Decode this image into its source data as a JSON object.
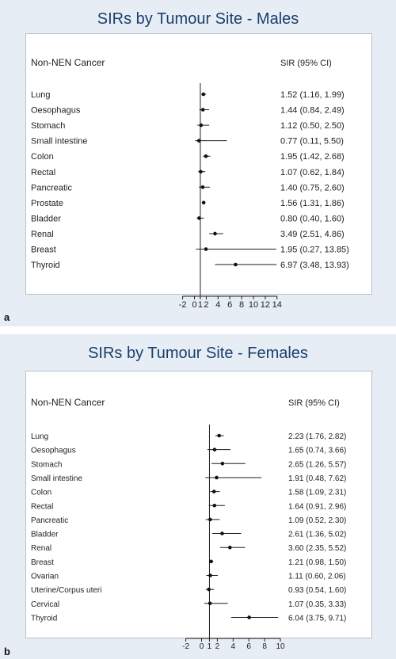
{
  "chart_data": [
    {
      "type": "forest",
      "panel_label": "a",
      "title": "SIRs by Tumour Site - Males",
      "row_header": "Non-NEN Cancer",
      "value_header": "SIR (95% CI)",
      "x_ticks": [
        -2,
        0,
        1,
        2,
        4,
        6,
        8,
        10,
        12,
        14
      ],
      "reference_line": 1,
      "rows": [
        {
          "label": "Lung",
          "sir": 1.52,
          "lo": 1.16,
          "hi": 1.99,
          "text": "1.52 (1.16, 1.99)"
        },
        {
          "label": "Oesophagus",
          "sir": 1.44,
          "lo": 0.84,
          "hi": 2.49,
          "text": "1.44 (0.84, 2.49)"
        },
        {
          "label": "Stomach",
          "sir": 1.12,
          "lo": 0.5,
          "hi": 2.5,
          "text": "1.12 (0.50, 2.50)"
        },
        {
          "label": "Small intestine",
          "sir": 0.77,
          "lo": 0.11,
          "hi": 5.5,
          "text": "0.77 (0.11, 5.50)"
        },
        {
          "label": "Colon",
          "sir": 1.95,
          "lo": 1.42,
          "hi": 2.68,
          "text": "1.95 (1.42, 2.68)"
        },
        {
          "label": "Rectal",
          "sir": 1.07,
          "lo": 0.62,
          "hi": 1.84,
          "text": "1.07 (0.62, 1.84)"
        },
        {
          "label": "Pancreatic",
          "sir": 1.4,
          "lo": 0.75,
          "hi": 2.6,
          "text": "1.40 (0.75, 2.60)"
        },
        {
          "label": "Prostate",
          "sir": 1.56,
          "lo": 1.31,
          "hi": 1.86,
          "text": "1.56 (1.31, 1.86)"
        },
        {
          "label": "Bladder",
          "sir": 0.8,
          "lo": 0.4,
          "hi": 1.6,
          "text": "0.80 (0.40, 1.60)"
        },
        {
          "label": "Renal",
          "sir": 3.49,
          "lo": 2.51,
          "hi": 4.86,
          "text": "3.49 (2.51, 4.86)"
        },
        {
          "label": "Breast",
          "sir": 1.95,
          "lo": 0.27,
          "hi": 13.85,
          "text": "1.95 (0.27, 13.85)"
        },
        {
          "label": "Thyroid",
          "sir": 6.97,
          "lo": 3.48,
          "hi": 13.93,
          "text": "6.97 (3.48, 13.93)"
        }
      ]
    },
    {
      "type": "forest",
      "panel_label": "b",
      "title": "SIRs by Tumour Site - Females",
      "row_header": "Non-NEN Cancer",
      "value_header": "SIR (95% CI)",
      "x_ticks": [
        -2,
        0,
        1,
        2,
        4,
        6,
        8,
        10
      ],
      "reference_line": 1,
      "rows": [
        {
          "label": "Lung",
          "sir": 2.23,
          "lo": 1.76,
          "hi": 2.82,
          "text": "2.23 (1.76, 2.82)"
        },
        {
          "label": "Oesophagus",
          "sir": 1.65,
          "lo": 0.74,
          "hi": 3.66,
          "text": "1.65 (0.74, 3.66)"
        },
        {
          "label": "Stomach",
          "sir": 2.65,
          "lo": 1.26,
          "hi": 5.57,
          "text": "2.65 (1.26, 5.57)"
        },
        {
          "label": "Small intestine",
          "sir": 1.91,
          "lo": 0.48,
          "hi": 7.62,
          "text": "1.91 (0.48, 7.62)"
        },
        {
          "label": "Colon",
          "sir": 1.58,
          "lo": 1.09,
          "hi": 2.31,
          "text": "1.58 (1.09, 2.31)"
        },
        {
          "label": "Rectal",
          "sir": 1.64,
          "lo": 0.91,
          "hi": 2.96,
          "text": "1.64 (0.91, 2.96)"
        },
        {
          "label": "Pancreatic",
          "sir": 1.09,
          "lo": 0.52,
          "hi": 2.3,
          "text": "1.09 (0.52, 2.30)"
        },
        {
          "label": "Bladder",
          "sir": 2.61,
          "lo": 1.36,
          "hi": 5.02,
          "text": "2.61 (1.36, 5.02)"
        },
        {
          "label": "Renal",
          "sir": 3.6,
          "lo": 2.35,
          "hi": 5.52,
          "text": "3.60 (2.35, 5.52)"
        },
        {
          "label": "Breast",
          "sir": 1.21,
          "lo": 0.98,
          "hi": 1.5,
          "text": "1.21 (0.98, 1.50)"
        },
        {
          "label": "Ovarian",
          "sir": 1.11,
          "lo": 0.6,
          "hi": 2.06,
          "text": "1.11 (0.60, 2.06)"
        },
        {
          "label": "Uterine/Corpus uteri",
          "sir": 0.93,
          "lo": 0.54,
          "hi": 1.6,
          "text": "0.93 (0.54, 1.60)"
        },
        {
          "label": "Cervical",
          "sir": 1.07,
          "lo": 0.35,
          "hi": 3.33,
          "text": "1.07 (0.35, 3.33)"
        },
        {
          "label": "Thyroid",
          "sir": 6.04,
          "lo": 3.75,
          "hi": 9.71,
          "text": "6.04 (3.75, 9.71)"
        }
      ]
    }
  ]
}
